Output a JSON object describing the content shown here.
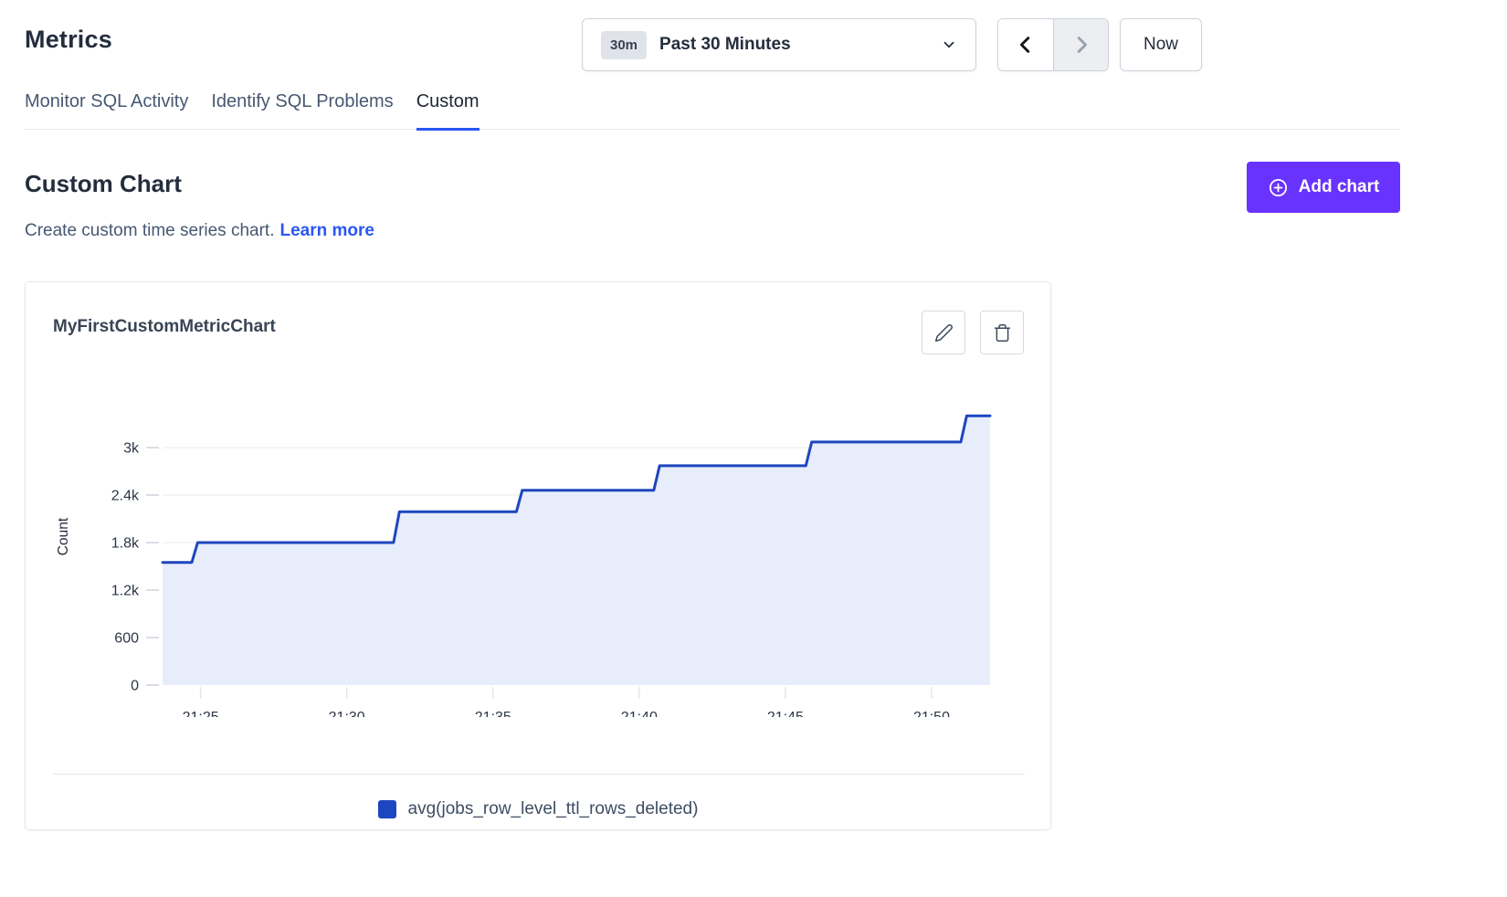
{
  "page": {
    "title": "Metrics"
  },
  "tabs": [
    {
      "label": "Monitor SQL Activity",
      "active": false
    },
    {
      "label": "Identify SQL Problems",
      "active": false
    },
    {
      "label": "Custom",
      "active": true
    }
  ],
  "time_controls": {
    "range_badge": "30m",
    "selected_range": "Past 30 Minutes",
    "now_label": "Now"
  },
  "section": {
    "title": "Custom Chart",
    "subtitle": "Create custom time series chart.",
    "learn_more_label": "Learn more",
    "add_chart_label": "Add chart"
  },
  "chart_card": {
    "title": "MyFirstCustomMetricChart"
  },
  "icons": {
    "time_range": "chevron-down",
    "previous_range": "chevron-left",
    "next_range": "chevron-right",
    "add_chart": "plus-circle",
    "edit_chart": "pencil",
    "delete_chart": "trash"
  },
  "chart_data": {
    "type": "area",
    "title": "MyFirstCustomMetricChart",
    "ylabel": "Count",
    "xlabel": "",
    "ylim": [
      0,
      3750
    ],
    "xlim_minutes": [
      23.7,
      52.0
    ],
    "grid": "horizontal",
    "legend_position": "bottom",
    "x_ticks": [
      {
        "t": 25,
        "label": "21:25"
      },
      {
        "t": 30,
        "label": "21:30"
      },
      {
        "t": 35,
        "label": "21:35"
      },
      {
        "t": 40,
        "label": "21:40"
      },
      {
        "t": 45,
        "label": "21:45"
      },
      {
        "t": 50,
        "label": "21:50"
      }
    ],
    "y_ticks": [
      {
        "v": 0,
        "label": "0"
      },
      {
        "v": 600,
        "label": "600"
      },
      {
        "v": 1200,
        "label": "1.2k"
      },
      {
        "v": 1800,
        "label": "1.8k"
      },
      {
        "v": 2400,
        "label": "2.4k"
      },
      {
        "v": 3000,
        "label": "3k"
      }
    ],
    "step_rise_minutes": 0.2,
    "series": [
      {
        "name": "avg(jobs_row_level_ttl_rows_deleted)",
        "color": "#1E46BE",
        "fill": "#E8EDFB",
        "step_points": [
          {
            "t": 23.7,
            "v": 1550
          },
          {
            "t": 24.7,
            "v": 1800
          },
          {
            "t": 31.6,
            "v": 2190
          },
          {
            "t": 35.8,
            "v": 2460
          },
          {
            "t": 40.5,
            "v": 2770
          },
          {
            "t": 45.7,
            "v": 3070
          },
          {
            "t": 51.0,
            "v": 3400
          }
        ],
        "end_t": 52.0
      }
    ]
  },
  "colors": {
    "accent_purple": "#6933FF",
    "link_blue": "#2957F4",
    "tab_underline": "#2957F4",
    "heading": "#242D3C",
    "muted_text": "#475872",
    "series_blue": "#1E46BE",
    "series_fill": "#E8EDFB",
    "border": "#CDD3DB",
    "card_border": "#E3E7EC",
    "grid_line": "#E9EBEE"
  }
}
